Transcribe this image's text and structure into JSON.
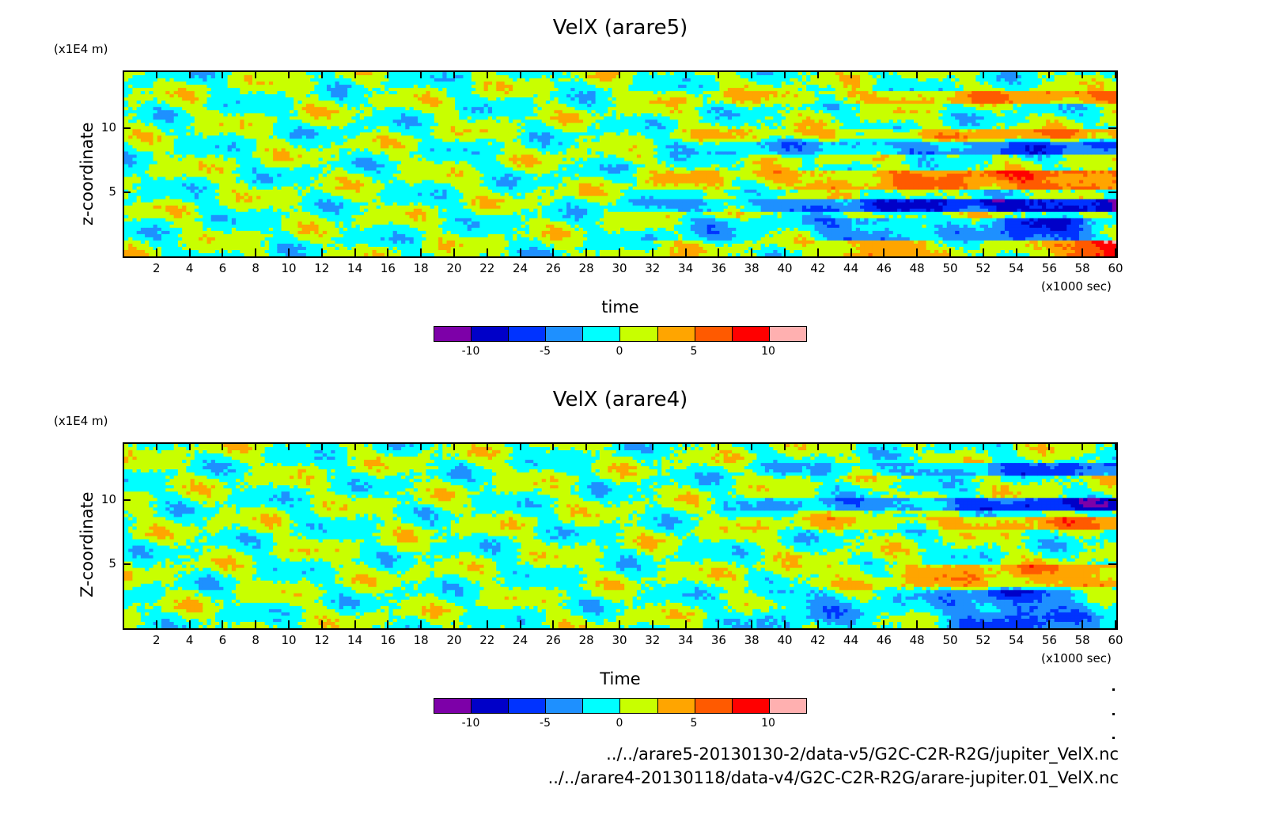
{
  "colors": {
    "levels": [
      "#7d00a8",
      "#0000c8",
      "#0033ff",
      "#1e90ff",
      "#00ffff",
      "#c8ff00",
      "#ffa500",
      "#ff5a00",
      "#ff0000",
      "#ffb0b0"
    ]
  },
  "chart_data": [
    {
      "type": "heatmap",
      "title": "VelX (arare5)",
      "ylabel": "z-coordinate",
      "yunit": "(x1E4 m)",
      "xlabel": "time",
      "xunit": "(x1000 sec)",
      "xlim": [
        0,
        60
      ],
      "ylim": [
        0,
        14.5
      ],
      "xticks": [
        "2",
        "4",
        "6",
        "8",
        "10",
        "12",
        "14",
        "16",
        "18",
        "20",
        "22",
        "24",
        "26",
        "28",
        "30",
        "32",
        "34",
        "36",
        "38",
        "40",
        "42",
        "44",
        "46",
        "48",
        "50",
        "52",
        "54",
        "56",
        "58",
        "60"
      ],
      "yticks": [
        "5",
        "10"
      ],
      "colorbar": {
        "min": -12.5,
        "max": 12.5,
        "step": 2.5,
        "labels": [
          "-10",
          "-5",
          "0",
          "5",
          "10"
        ]
      }
    },
    {
      "type": "heatmap",
      "title": "VelX (arare4)",
      "ylabel": "Z-coordinate",
      "yunit": "(x1E4 m)",
      "xlabel": "Time",
      "xunit": "(x1000 sec)",
      "xlim": [
        0,
        60
      ],
      "ylim": [
        0,
        14.5
      ],
      "xticks": [
        "2",
        "4",
        "6",
        "8",
        "10",
        "12",
        "14",
        "16",
        "18",
        "20",
        "22",
        "24",
        "26",
        "28",
        "30",
        "32",
        "34",
        "36",
        "38",
        "40",
        "42",
        "44",
        "46",
        "48",
        "50",
        "52",
        "54",
        "56",
        "58",
        "60"
      ],
      "yticks": [
        "5",
        "10"
      ],
      "colorbar": {
        "min": -12.5,
        "max": 12.5,
        "step": 2.5,
        "labels": [
          "-10",
          "-5",
          "0",
          "5",
          "10"
        ]
      }
    }
  ],
  "files": [
    "../../arare5-20130130-2/data-v5/G2C-C2R-R2G/jupiter_VelX.nc",
    "../../arare4-20130118/data-v4/G2C-C2R-R2G/arare-jupiter.01_VelX.nc"
  ]
}
